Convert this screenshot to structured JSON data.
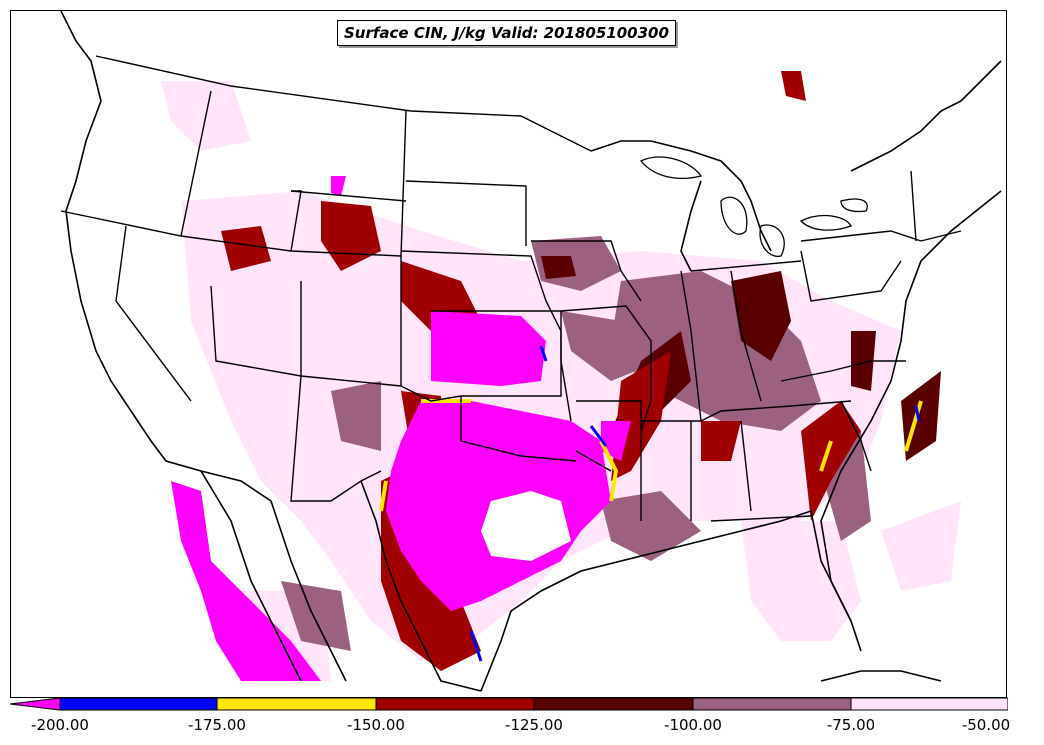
{
  "title": "Surface CIN, J/kg Valid: 201805100300",
  "colorbar": {
    "ticks": [
      "-200.00",
      "-175.00",
      "-150.00",
      "-125.00",
      "-100.00",
      "-75.00",
      "-50.00"
    ],
    "segments": [
      {
        "name": "below-200",
        "color": "#ff00ff"
      },
      {
        "name": "-200-to-175",
        "color": "#0000ff"
      },
      {
        "name": "-175-to-150",
        "color": "#ffe600"
      },
      {
        "name": "-150-to-125",
        "color": "#a00000"
      },
      {
        "name": "-125-to-100",
        "color": "#5a0000"
      },
      {
        "name": "-100-to-75",
        "color": "#9c6080"
      },
      {
        "name": "-75-to-50",
        "color": "#ffe4fa"
      }
    ]
  }
}
